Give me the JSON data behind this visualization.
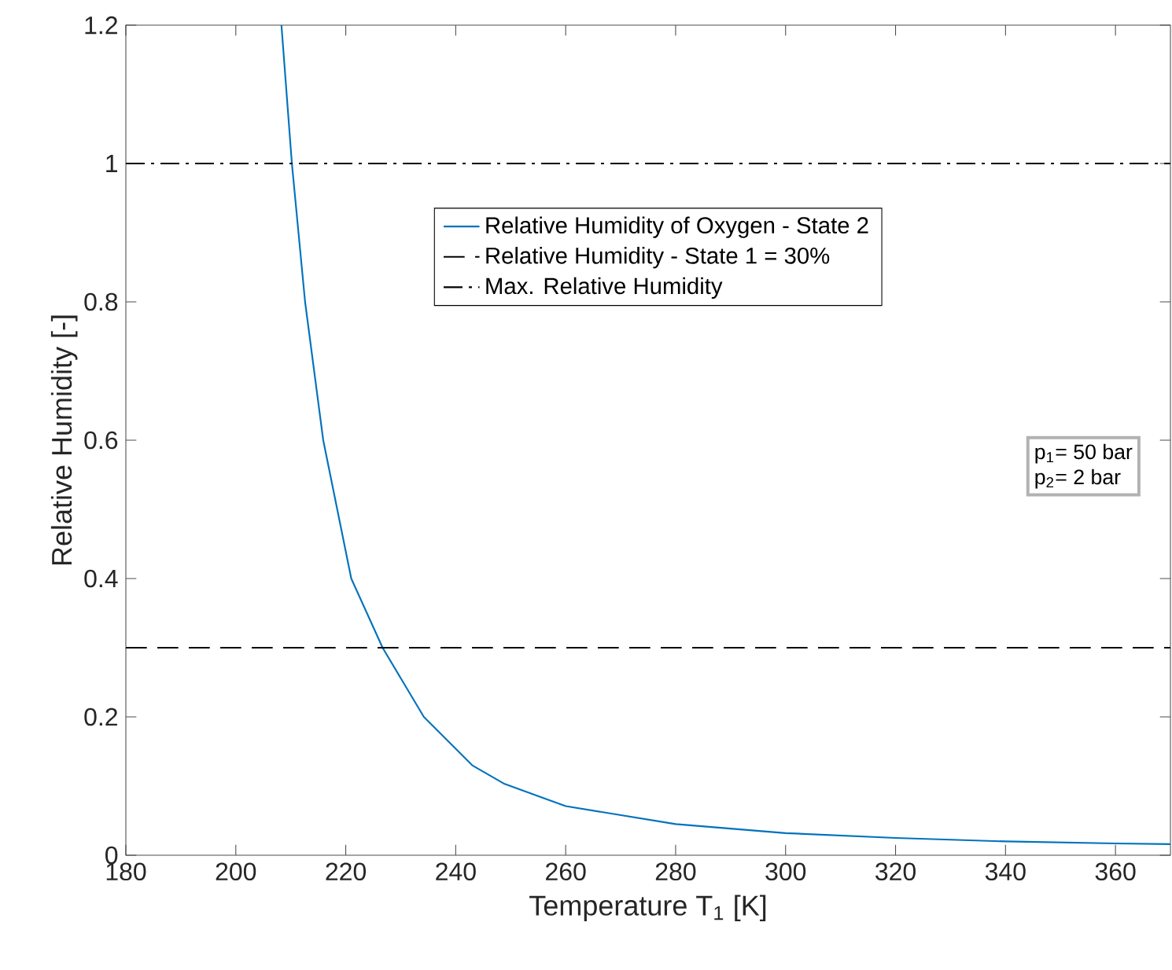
{
  "chart_data": {
    "type": "line",
    "xlabel": "Temperature T$_{1}$ [K]",
    "ylabel": "Relative Humidity [-]",
    "xlim": [
      180,
      370
    ],
    "ylim": [
      0,
      1.2
    ],
    "xticks": [
      180,
      200,
      220,
      240,
      260,
      280,
      300,
      320,
      340,
      360
    ],
    "yticks": [
      0,
      0.2,
      0.4,
      0.6,
      0.8,
      1,
      1.2
    ],
    "legend": "top right",
    "marker": "none",
    "series": [
      {
        "name": "Relative Humidity of Oxygen - State 2",
        "color": "#0072bd",
        "line_style": "solid",
        "x": [
          208.3,
          210.2,
          212.6,
          215.9,
          221.0,
          226.7,
          234.2,
          243.0,
          248.9,
          260,
          280,
          300,
          320,
          340,
          360,
          370
        ],
        "values": [
          1.2,
          1.0,
          0.8,
          0.6,
          0.4,
          0.3,
          0.2,
          0.13,
          0.103,
          0.071,
          0.045,
          0.032,
          0.025,
          0.02,
          0.017,
          0.016
        ]
      },
      {
        "name": "Relative Humidity - State 1 = 30%",
        "color": "#000000",
        "line_style": "dashed",
        "x": [
          180,
          370
        ],
        "values": [
          0.3,
          0.3
        ]
      },
      {
        "name": "Max. Relative Humidity",
        "color": "#000000",
        "line_style": "dashdot",
        "x": [
          180,
          370
        ],
        "values": [
          1,
          1
        ]
      }
    ],
    "annotations": [
      "p$_{1}$= 50 bar",
      "p$_{2}$= 2 bar"
    ]
  }
}
